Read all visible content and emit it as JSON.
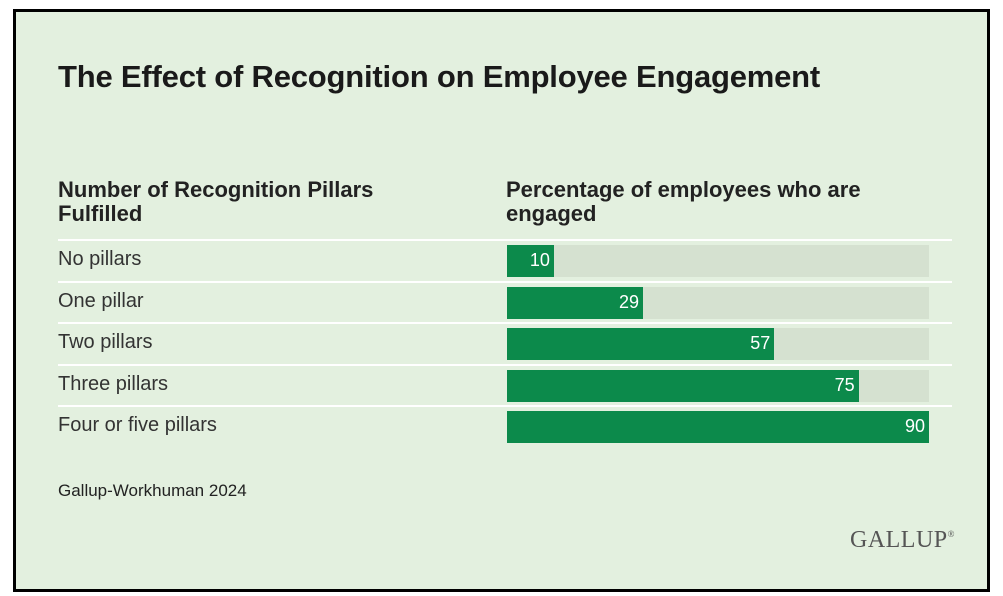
{
  "chart_data": {
    "type": "bar",
    "orientation": "horizontal",
    "title": "The Effect of Recognition on Employee Engagement",
    "category_header": "Number of Recognition Pillars Fulfilled",
    "value_header": "Percentage of employees who are engaged",
    "categories": [
      "No pillars",
      "One pillar",
      "Two pillars",
      "Three pillars",
      "Four or five pillars"
    ],
    "values": [
      10,
      29,
      57,
      75,
      90
    ],
    "xlim": [
      0,
      90
    ],
    "bar_color": "#0c8a4b",
    "track_color": "#d5e1d0"
  },
  "source": "Gallup-Workhuman 2024",
  "logo": "GALLUP",
  "colors": {
    "background": "#e3f0df",
    "accent": "#0c8a4b"
  }
}
